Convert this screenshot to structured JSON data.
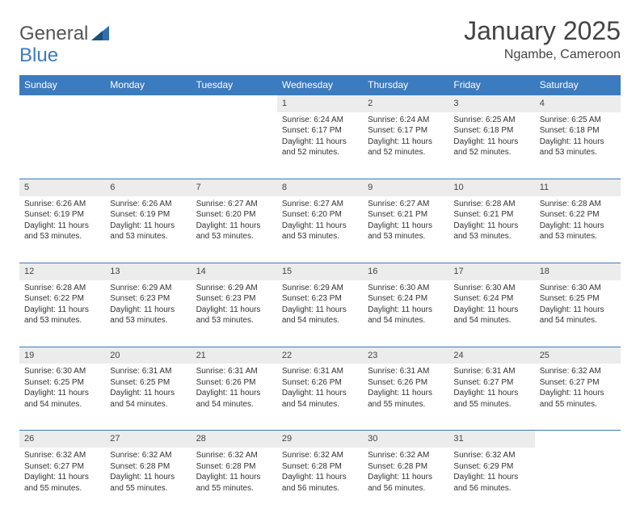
{
  "brand": {
    "part1": "General",
    "part2": "Blue"
  },
  "title": "January 2025",
  "location": "Ngambe, Cameroon",
  "colors": {
    "header_bg": "#3b7bbf",
    "header_text": "#ffffff",
    "daynum_bg": "#ececec",
    "rule": "#3b7bbf",
    "text": "#333333",
    "title_text": "#444444"
  },
  "day_labels": [
    "Sunday",
    "Monday",
    "Tuesday",
    "Wednesday",
    "Thursday",
    "Friday",
    "Saturday"
  ],
  "weeks": [
    [
      null,
      null,
      null,
      {
        "n": "1",
        "sr": "6:24 AM",
        "ss": "6:17 PM",
        "dl": "11 hours and 52 minutes."
      },
      {
        "n": "2",
        "sr": "6:24 AM",
        "ss": "6:17 PM",
        "dl": "11 hours and 52 minutes."
      },
      {
        "n": "3",
        "sr": "6:25 AM",
        "ss": "6:18 PM",
        "dl": "11 hours and 52 minutes."
      },
      {
        "n": "4",
        "sr": "6:25 AM",
        "ss": "6:18 PM",
        "dl": "11 hours and 53 minutes."
      }
    ],
    [
      {
        "n": "5",
        "sr": "6:26 AM",
        "ss": "6:19 PM",
        "dl": "11 hours and 53 minutes."
      },
      {
        "n": "6",
        "sr": "6:26 AM",
        "ss": "6:19 PM",
        "dl": "11 hours and 53 minutes."
      },
      {
        "n": "7",
        "sr": "6:27 AM",
        "ss": "6:20 PM",
        "dl": "11 hours and 53 minutes."
      },
      {
        "n": "8",
        "sr": "6:27 AM",
        "ss": "6:20 PM",
        "dl": "11 hours and 53 minutes."
      },
      {
        "n": "9",
        "sr": "6:27 AM",
        "ss": "6:21 PM",
        "dl": "11 hours and 53 minutes."
      },
      {
        "n": "10",
        "sr": "6:28 AM",
        "ss": "6:21 PM",
        "dl": "11 hours and 53 minutes."
      },
      {
        "n": "11",
        "sr": "6:28 AM",
        "ss": "6:22 PM",
        "dl": "11 hours and 53 minutes."
      }
    ],
    [
      {
        "n": "12",
        "sr": "6:28 AM",
        "ss": "6:22 PM",
        "dl": "11 hours and 53 minutes."
      },
      {
        "n": "13",
        "sr": "6:29 AM",
        "ss": "6:23 PM",
        "dl": "11 hours and 53 minutes."
      },
      {
        "n": "14",
        "sr": "6:29 AM",
        "ss": "6:23 PM",
        "dl": "11 hours and 53 minutes."
      },
      {
        "n": "15",
        "sr": "6:29 AM",
        "ss": "6:23 PM",
        "dl": "11 hours and 54 minutes."
      },
      {
        "n": "16",
        "sr": "6:30 AM",
        "ss": "6:24 PM",
        "dl": "11 hours and 54 minutes."
      },
      {
        "n": "17",
        "sr": "6:30 AM",
        "ss": "6:24 PM",
        "dl": "11 hours and 54 minutes."
      },
      {
        "n": "18",
        "sr": "6:30 AM",
        "ss": "6:25 PM",
        "dl": "11 hours and 54 minutes."
      }
    ],
    [
      {
        "n": "19",
        "sr": "6:30 AM",
        "ss": "6:25 PM",
        "dl": "11 hours and 54 minutes."
      },
      {
        "n": "20",
        "sr": "6:31 AM",
        "ss": "6:25 PM",
        "dl": "11 hours and 54 minutes."
      },
      {
        "n": "21",
        "sr": "6:31 AM",
        "ss": "6:26 PM",
        "dl": "11 hours and 54 minutes."
      },
      {
        "n": "22",
        "sr": "6:31 AM",
        "ss": "6:26 PM",
        "dl": "11 hours and 54 minutes."
      },
      {
        "n": "23",
        "sr": "6:31 AM",
        "ss": "6:26 PM",
        "dl": "11 hours and 55 minutes."
      },
      {
        "n": "24",
        "sr": "6:31 AM",
        "ss": "6:27 PM",
        "dl": "11 hours and 55 minutes."
      },
      {
        "n": "25",
        "sr": "6:32 AM",
        "ss": "6:27 PM",
        "dl": "11 hours and 55 minutes."
      }
    ],
    [
      {
        "n": "26",
        "sr": "6:32 AM",
        "ss": "6:27 PM",
        "dl": "11 hours and 55 minutes."
      },
      {
        "n": "27",
        "sr": "6:32 AM",
        "ss": "6:28 PM",
        "dl": "11 hours and 55 minutes."
      },
      {
        "n": "28",
        "sr": "6:32 AM",
        "ss": "6:28 PM",
        "dl": "11 hours and 55 minutes."
      },
      {
        "n": "29",
        "sr": "6:32 AM",
        "ss": "6:28 PM",
        "dl": "11 hours and 56 minutes."
      },
      {
        "n": "30",
        "sr": "6:32 AM",
        "ss": "6:28 PM",
        "dl": "11 hours and 56 minutes."
      },
      {
        "n": "31",
        "sr": "6:32 AM",
        "ss": "6:29 PM",
        "dl": "11 hours and 56 minutes."
      },
      null
    ]
  ],
  "labels": {
    "sunrise": "Sunrise:",
    "sunset": "Sunset:",
    "daylight": "Daylight:"
  }
}
